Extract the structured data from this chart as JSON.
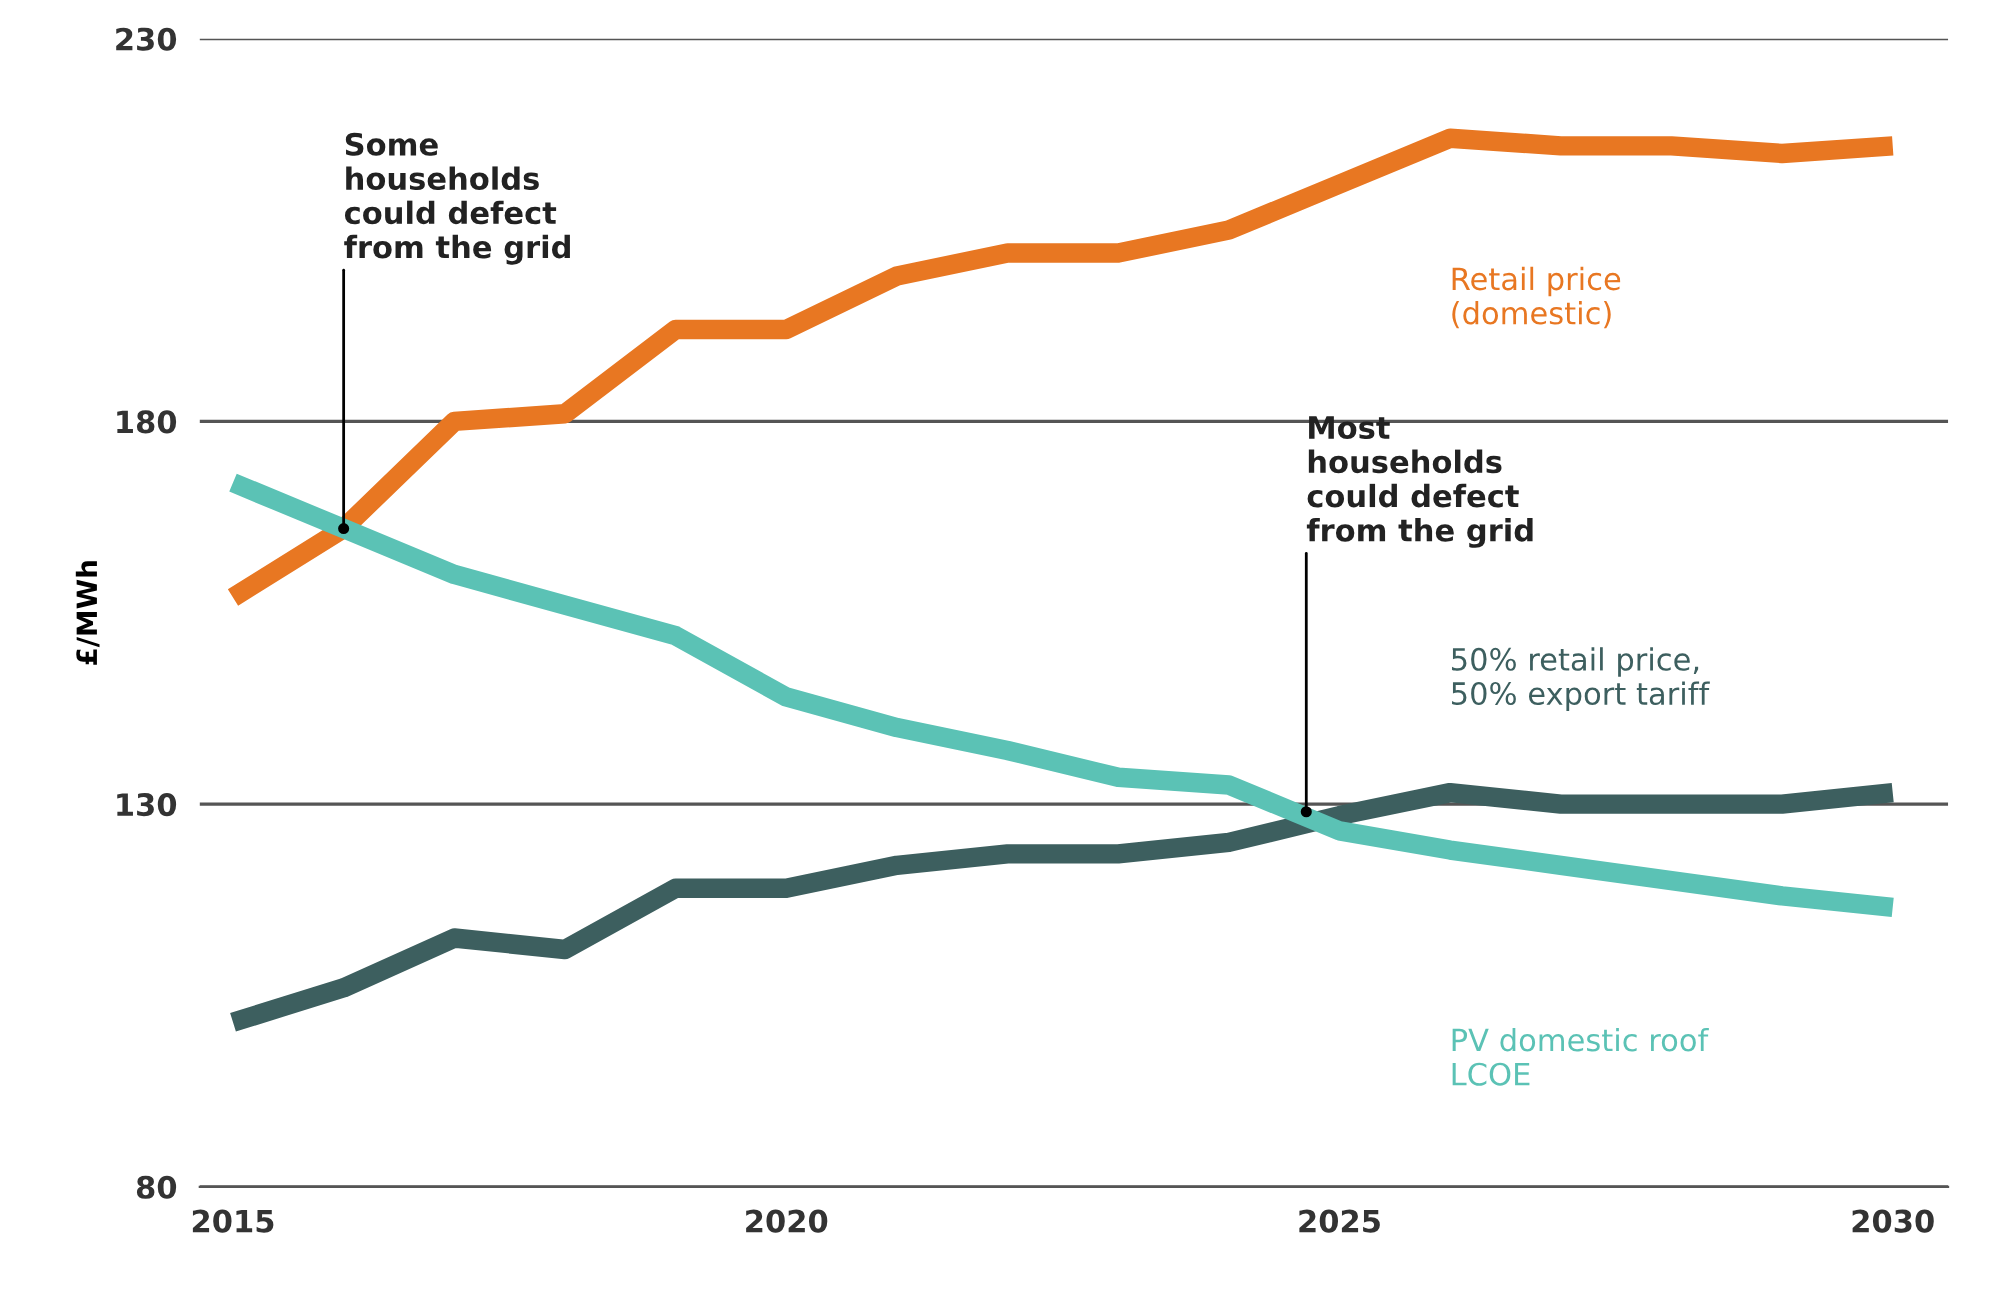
{
  "chart_data": {
    "type": "line",
    "ylabel": "£/MWh",
    "x": [
      2015,
      2016,
      2017,
      2018,
      2019,
      2020,
      2021,
      2022,
      2023,
      2024,
      2025,
      2026,
      2027,
      2028,
      2029,
      2030
    ],
    "series": [
      {
        "name": "Retail price\n(domestic)",
        "color": "#e87722",
        "values": [
          157,
          166,
          180,
          181,
          192,
          192,
          199,
          202,
          202,
          205,
          211,
          217,
          216,
          216,
          215,
          216
        ]
      },
      {
        "name": "50% retail price,\n50% export tariff",
        "color": "#3d5f5f",
        "values": [
          101.5,
          106,
          112.5,
          111,
          119,
          119,
          122,
          123.5,
          123.5,
          125,
          128.5,
          131.5,
          130,
          130,
          130,
          131.5
        ]
      },
      {
        "name": "PV domestic roof\nLCOE",
        "color": "#5bc2b5",
        "values": [
          172,
          166,
          160,
          156,
          152,
          144,
          140,
          137,
          133.5,
          132.5,
          126.5,
          124,
          122,
          120,
          118,
          116.5
        ]
      }
    ],
    "xlim": [
      2014.7,
      2030.5
    ],
    "xticks": [
      2015,
      2020,
      2025,
      2030
    ],
    "ylim": [
      80,
      230
    ],
    "yticks": [
      80,
      130,
      180,
      230
    ],
    "grid": "y",
    "legend": false,
    "marker": "none",
    "line_style": "solid",
    "annotations": [
      {
        "text": "Some\nhouseholds\ncould defect\nfrom the grid",
        "x": 2016,
        "y": 166
      },
      {
        "text": "Most\nhouseholds\ncould defect\nfrom the grid",
        "x": 2024.7,
        "y": 129
      }
    ]
  }
}
